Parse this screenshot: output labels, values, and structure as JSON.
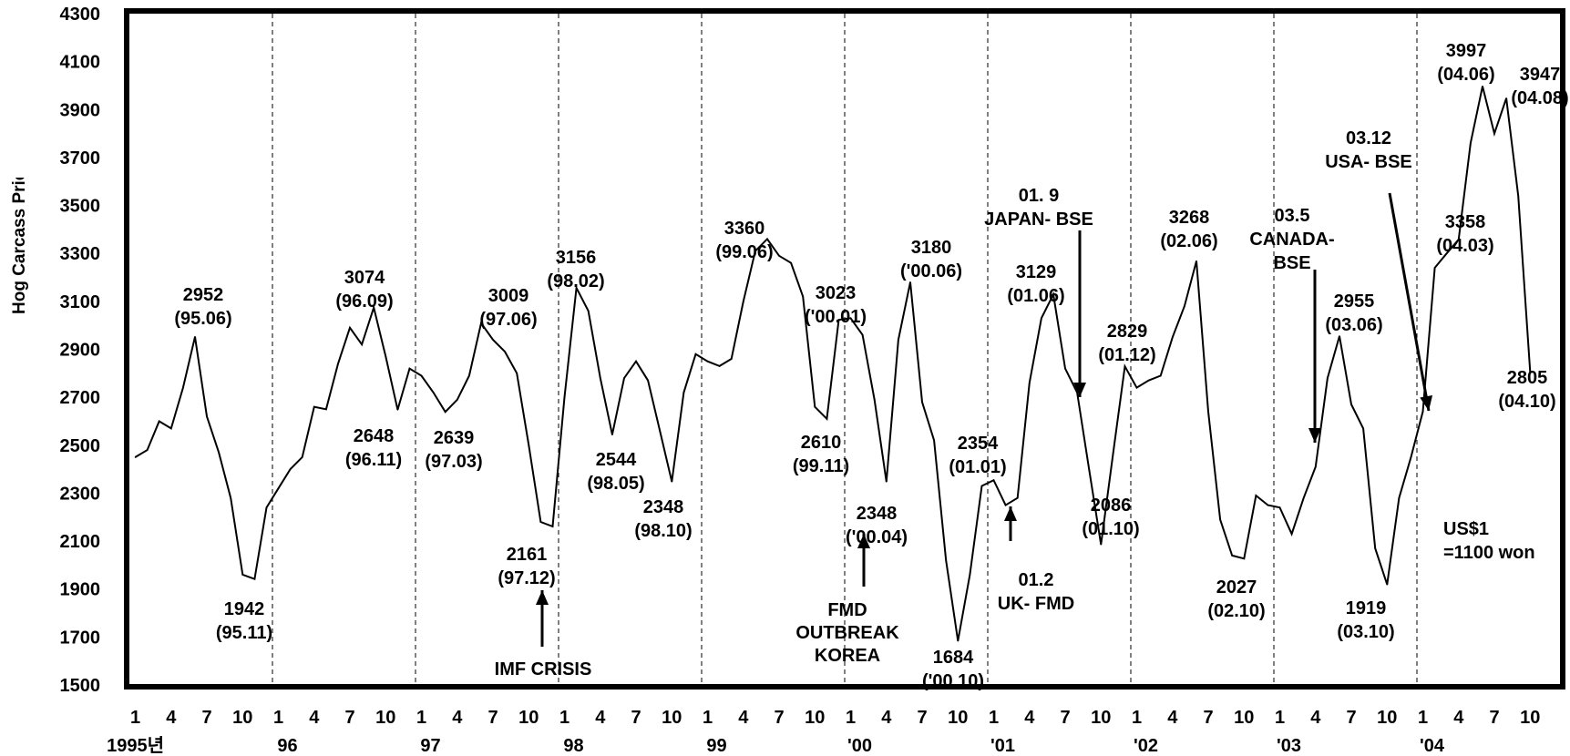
{
  "chart_data": {
    "type": "line",
    "ylabel": "Hog Carcass Price(won/kg)",
    "ylim": [
      1500,
      4300
    ],
    "yticks": [
      4300,
      4100,
      3900,
      3700,
      3500,
      3300,
      3100,
      2900,
      2700,
      2500,
      2300,
      2100,
      1900,
      1700,
      1500
    ],
    "month_tick_labels": [
      "1",
      "4",
      "7",
      "10"
    ],
    "year_labels": [
      "1995년",
      "96",
      "97",
      "98",
      "99",
      "'00",
      "'01",
      "'02",
      "'03",
      "'04"
    ],
    "grid": "vertical dashed at each January",
    "series": [
      {
        "values": [
          2450,
          2480,
          2600,
          2570,
          2740,
          2952,
          2620,
          2470,
          2280,
          1960,
          1942,
          2240,
          2320,
          2400,
          2450,
          2660,
          2650,
          2840,
          2990,
          2920,
          3074,
          2870,
          2648,
          2820,
          2790,
          2720,
          2639,
          2690,
          2790,
          3009,
          2940,
          2890,
          2800,
          2500,
          2180,
          2161,
          2700,
          3156,
          3060,
          2780,
          2544,
          2780,
          2850,
          2770,
          2560,
          2348,
          2720,
          2880,
          2850,
          2830,
          2860,
          3100,
          3310,
          3360,
          3290,
          3260,
          3120,
          2660,
          2610,
          3023,
          3030,
          2960,
          2690,
          2348,
          2940,
          3180,
          2680,
          2520,
          2020,
          1684,
          1960,
          2330,
          2354,
          2250,
          2280,
          2760,
          3030,
          3129,
          2820,
          2720,
          2400,
          2086,
          2460,
          2829,
          2740,
          2770,
          2790,
          2950,
          3080,
          3268,
          2640,
          2190,
          2040,
          2027,
          2290,
          2250,
          2240,
          2130,
          2280,
          2410,
          2780,
          2955,
          2670,
          2570,
          2070,
          1919,
          2280,
          2450,
          2640,
          3240,
          3300,
          3358,
          3760,
          3997,
          3800,
          3947,
          3540,
          2805
        ]
      }
    ],
    "annotations": [
      {
        "lines": [
          "2952",
          "(95.06)"
        ]
      },
      {
        "lines": [
          "1942",
          "(95.11)"
        ]
      },
      {
        "lines": [
          "3074",
          "(96.09)"
        ]
      },
      {
        "lines": [
          "2648",
          "(96.11)"
        ]
      },
      {
        "lines": [
          "3009",
          "(97.06)"
        ]
      },
      {
        "lines": [
          "2639",
          "(97.03)"
        ]
      },
      {
        "lines": [
          "2161",
          "(97.12)"
        ]
      },
      {
        "lines": [
          "IMF  CRISIS"
        ]
      },
      {
        "lines": [
          "3156",
          "(98.02)"
        ]
      },
      {
        "lines": [
          "2544",
          "(98.05)"
        ]
      },
      {
        "lines": [
          "2348",
          "(98.10)"
        ]
      },
      {
        "lines": [
          "3360",
          "(99.06)"
        ]
      },
      {
        "lines": [
          "2610",
          "(99.11)"
        ]
      },
      {
        "lines": [
          "3023",
          "('00.01)"
        ]
      },
      {
        "lines": [
          "3180",
          "('00.06)"
        ]
      },
      {
        "lines": [
          "2348",
          "('00.04)"
        ]
      },
      {
        "lines": [
          "FMD",
          "OUTBREAK",
          "KOREA"
        ]
      },
      {
        "lines": [
          "1684",
          "('00.10)"
        ]
      },
      {
        "lines": [
          "2354",
          "(01.01)"
        ]
      },
      {
        "lines": [
          "01.2",
          "UK- FMD"
        ]
      },
      {
        "lines": [
          "01. 9",
          "JAPAN- BSE"
        ]
      },
      {
        "lines": [
          "3129",
          "(01.06)"
        ]
      },
      {
        "lines": [
          "2829",
          "(01.12)"
        ]
      },
      {
        "lines": [
          "2086",
          "(01.10)"
        ]
      },
      {
        "lines": [
          "3268",
          "(02.06)"
        ]
      },
      {
        "lines": [
          "2027",
          "(02.10)"
        ]
      },
      {
        "lines": [
          "03.5",
          "CANADA-",
          "BSE"
        ]
      },
      {
        "lines": [
          "2955",
          "(03.06)"
        ]
      },
      {
        "lines": [
          "1919",
          "(03.10)"
        ]
      },
      {
        "lines": [
          "03.12",
          "USA-  BSE"
        ]
      },
      {
        "lines": [
          "3358",
          "(04.03)"
        ]
      },
      {
        "lines": [
          "3997",
          "(04.06)"
        ]
      },
      {
        "lines": [
          "3947",
          "(04.08)"
        ]
      },
      {
        "lines": [
          "2805",
          "(04.10)"
        ]
      },
      {
        "lines": [
          "US$1",
          "=1100 won"
        ]
      }
    ]
  }
}
